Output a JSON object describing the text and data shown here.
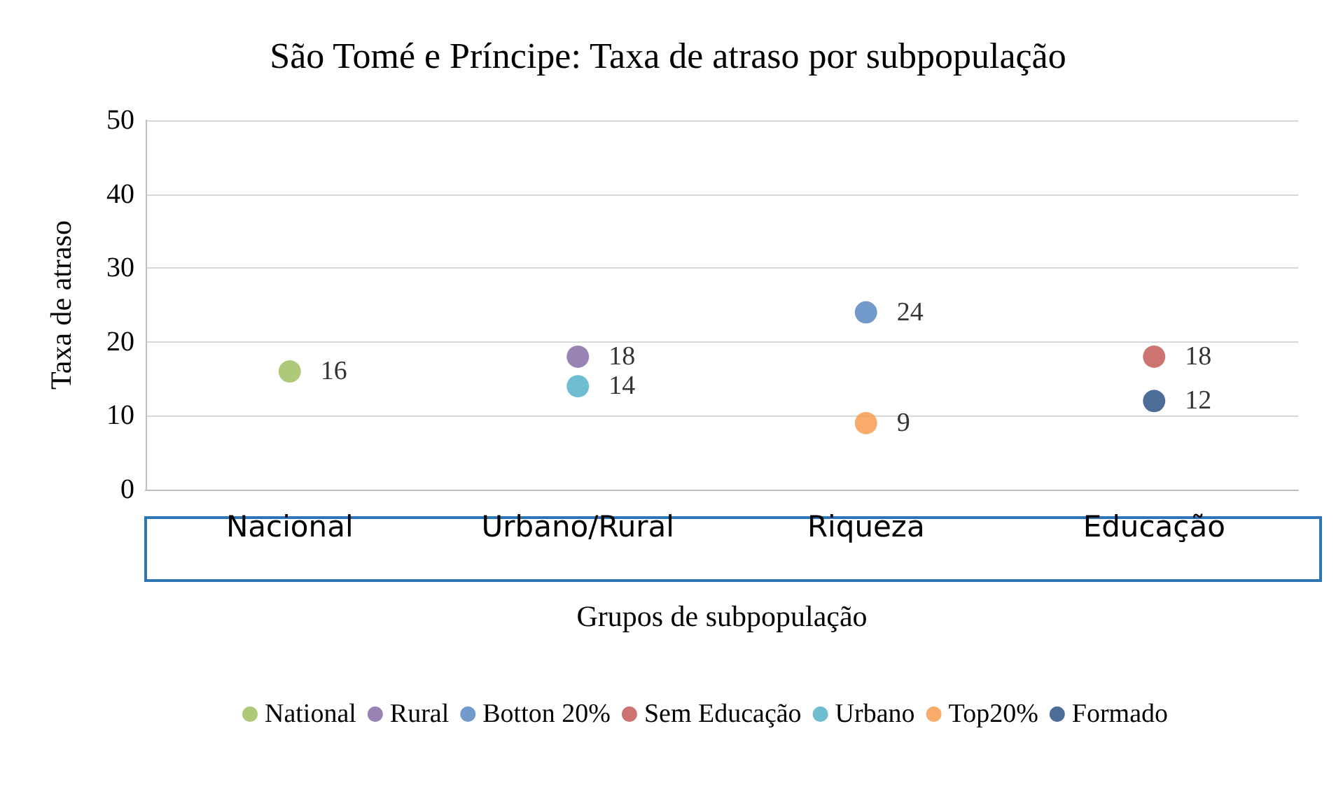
{
  "chart_data": {
    "type": "scatter",
    "title": "São Tomé e Príncipe: Taxa de atraso por subpopulação",
    "xlabel": "Grupos de subpopulação",
    "ylabel": "Taxa de atraso",
    "categories": [
      "Nacional",
      "Urbano/Rural",
      "Riqueza",
      "Educação"
    ],
    "ylim": [
      0,
      50
    ],
    "yticks": [
      0,
      10,
      20,
      30,
      40,
      50
    ],
    "grid": "y",
    "legend": "bottom",
    "marker": "circle",
    "data_labels": true,
    "series": [
      {
        "name": "National",
        "color": "#9bbb59",
        "x": [
          "Nacional"
        ],
        "values": [
          16
        ]
      },
      {
        "name": "Rural",
        "color": "#8064a2",
        "x": [
          "Urbano/Rural"
        ],
        "values": [
          18
        ]
      },
      {
        "name": "Botton 20%",
        "color": "#4f81bd",
        "x": [
          "Riqueza"
        ],
        "values": [
          24
        ]
      },
      {
        "name": "Sem Educação",
        "color": "#c0504d",
        "x": [
          "Educação"
        ],
        "values": [
          18
        ]
      },
      {
        "name": "Urbano",
        "color": "#4bacc6",
        "x": [
          "Urbano/Rural"
        ],
        "values": [
          14
        ]
      },
      {
        "name": "Top20%",
        "color": "#f79646",
        "x": [
          "Riqueza"
        ],
        "values": [
          9
        ]
      },
      {
        "name": "Formado",
        "color": "#1f497d",
        "x": [
          "Educação"
        ],
        "values": [
          12
        ]
      }
    ]
  }
}
